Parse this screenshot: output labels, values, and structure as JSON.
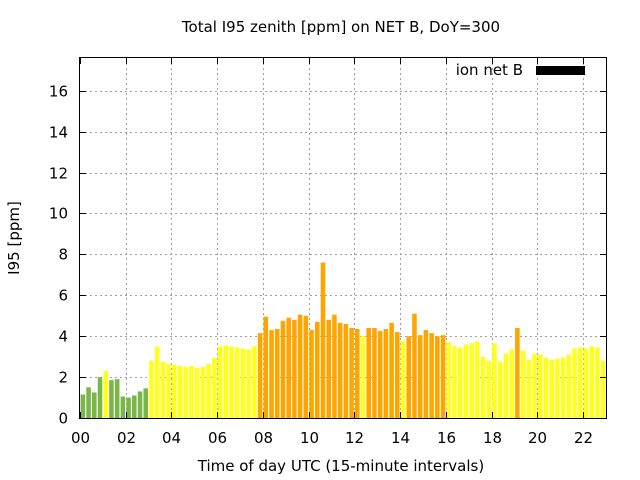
{
  "chart_data": {
    "type": "bar",
    "title": "Total I95 zenith [ppm] on NET B, DoY=300",
    "xlabel": "Time of day UTC (15-minute intervals)",
    "ylabel": "I95 [ppm]",
    "legend": {
      "label": "ion net B",
      "color": "#000000",
      "placement": "top-right"
    },
    "grid": true,
    "xlim": [
      0,
      23
    ],
    "ylim": [
      0,
      17.6
    ],
    "bar_width_hours": 0.2,
    "x_tick_values": [
      0,
      2,
      4,
      6,
      8,
      10,
      12,
      14,
      16,
      18,
      20,
      22
    ],
    "x_tick_labels": [
      "00",
      "02",
      "04",
      "06",
      "08",
      "10",
      "12",
      "14",
      "16",
      "18",
      "20",
      "22"
    ],
    "y_ticks": [
      0,
      2,
      4,
      6,
      8,
      10,
      12,
      14,
      16
    ],
    "colors": {
      "green": "#7ab648",
      "yellow": "#ffff1e",
      "orange": "#ffa500"
    },
    "bars": [
      {
        "x": 0.125,
        "y": 1.15,
        "c": "green"
      },
      {
        "x": 0.375,
        "y": 1.5,
        "c": "green"
      },
      {
        "x": 0.625,
        "y": 1.25,
        "c": "green"
      },
      {
        "x": 0.875,
        "y": 2.0,
        "c": "green"
      },
      {
        "x": 1.125,
        "y": 2.3,
        "c": "yellow"
      },
      {
        "x": 1.375,
        "y": 1.85,
        "c": "green"
      },
      {
        "x": 1.625,
        "y": 1.9,
        "c": "green"
      },
      {
        "x": 1.875,
        "y": 1.05,
        "c": "green"
      },
      {
        "x": 2.125,
        "y": 1.0,
        "c": "green"
      },
      {
        "x": 2.375,
        "y": 1.1,
        "c": "green"
      },
      {
        "x": 2.625,
        "y": 1.3,
        "c": "green"
      },
      {
        "x": 2.875,
        "y": 1.45,
        "c": "green"
      },
      {
        "x": 3.125,
        "y": 2.8,
        "c": "yellow"
      },
      {
        "x": 3.375,
        "y": 3.5,
        "c": "yellow"
      },
      {
        "x": 3.625,
        "y": 2.75,
        "c": "yellow"
      },
      {
        "x": 3.875,
        "y": 2.65,
        "c": "yellow"
      },
      {
        "x": 4.125,
        "y": 2.6,
        "c": "yellow"
      },
      {
        "x": 4.375,
        "y": 2.55,
        "c": "yellow"
      },
      {
        "x": 4.625,
        "y": 2.5,
        "c": "yellow"
      },
      {
        "x": 4.875,
        "y": 2.55,
        "c": "yellow"
      },
      {
        "x": 5.125,
        "y": 2.45,
        "c": "yellow"
      },
      {
        "x": 5.375,
        "y": 2.5,
        "c": "yellow"
      },
      {
        "x": 5.625,
        "y": 2.65,
        "c": "yellow"
      },
      {
        "x": 5.875,
        "y": 2.95,
        "c": "yellow"
      },
      {
        "x": 6.125,
        "y": 3.5,
        "c": "yellow"
      },
      {
        "x": 6.375,
        "y": 3.55,
        "c": "yellow"
      },
      {
        "x": 6.625,
        "y": 3.5,
        "c": "yellow"
      },
      {
        "x": 6.875,
        "y": 3.45,
        "c": "yellow"
      },
      {
        "x": 7.125,
        "y": 3.4,
        "c": "yellow"
      },
      {
        "x": 7.375,
        "y": 3.35,
        "c": "yellow"
      },
      {
        "x": 7.625,
        "y": 3.5,
        "c": "yellow"
      },
      {
        "x": 7.875,
        "y": 4.15,
        "c": "orange"
      },
      {
        "x": 8.125,
        "y": 4.95,
        "c": "orange"
      },
      {
        "x": 8.375,
        "y": 4.3,
        "c": "orange"
      },
      {
        "x": 8.625,
        "y": 4.35,
        "c": "orange"
      },
      {
        "x": 8.875,
        "y": 4.75,
        "c": "orange"
      },
      {
        "x": 9.125,
        "y": 4.9,
        "c": "orange"
      },
      {
        "x": 9.375,
        "y": 4.8,
        "c": "orange"
      },
      {
        "x": 9.625,
        "y": 5.05,
        "c": "orange"
      },
      {
        "x": 9.875,
        "y": 5.0,
        "c": "orange"
      },
      {
        "x": 10.125,
        "y": 4.3,
        "c": "orange"
      },
      {
        "x": 10.375,
        "y": 4.7,
        "c": "orange"
      },
      {
        "x": 10.625,
        "y": 7.6,
        "c": "orange"
      },
      {
        "x": 10.875,
        "y": 4.8,
        "c": "orange"
      },
      {
        "x": 11.125,
        "y": 5.05,
        "c": "orange"
      },
      {
        "x": 11.375,
        "y": 4.65,
        "c": "orange"
      },
      {
        "x": 11.625,
        "y": 4.6,
        "c": "orange"
      },
      {
        "x": 11.875,
        "y": 4.4,
        "c": "orange"
      },
      {
        "x": 12.125,
        "y": 4.35,
        "c": "orange"
      },
      {
        "x": 12.375,
        "y": 4.0,
        "c": "yellow"
      },
      {
        "x": 12.625,
        "y": 4.4,
        "c": "orange"
      },
      {
        "x": 12.875,
        "y": 4.4,
        "c": "orange"
      },
      {
        "x": 13.125,
        "y": 4.25,
        "c": "orange"
      },
      {
        "x": 13.375,
        "y": 4.35,
        "c": "orange"
      },
      {
        "x": 13.625,
        "y": 4.65,
        "c": "orange"
      },
      {
        "x": 13.875,
        "y": 4.2,
        "c": "orange"
      },
      {
        "x": 14.125,
        "y": 3.75,
        "c": "yellow"
      },
      {
        "x": 14.375,
        "y": 4.0,
        "c": "orange"
      },
      {
        "x": 14.625,
        "y": 5.1,
        "c": "orange"
      },
      {
        "x": 14.875,
        "y": 4.05,
        "c": "orange"
      },
      {
        "x": 15.125,
        "y": 4.3,
        "c": "orange"
      },
      {
        "x": 15.375,
        "y": 4.15,
        "c": "orange"
      },
      {
        "x": 15.625,
        "y": 4.0,
        "c": "orange"
      },
      {
        "x": 15.875,
        "y": 4.05,
        "c": "orange"
      },
      {
        "x": 16.125,
        "y": 3.7,
        "c": "yellow"
      },
      {
        "x": 16.375,
        "y": 3.5,
        "c": "yellow"
      },
      {
        "x": 16.625,
        "y": 3.45,
        "c": "yellow"
      },
      {
        "x": 16.875,
        "y": 3.6,
        "c": "yellow"
      },
      {
        "x": 17.125,
        "y": 3.65,
        "c": "yellow"
      },
      {
        "x": 17.375,
        "y": 3.75,
        "c": "yellow"
      },
      {
        "x": 17.625,
        "y": 3.0,
        "c": "yellow"
      },
      {
        "x": 17.875,
        "y": 2.8,
        "c": "yellow"
      },
      {
        "x": 18.125,
        "y": 3.65,
        "c": "yellow"
      },
      {
        "x": 18.375,
        "y": 2.75,
        "c": "yellow"
      },
      {
        "x": 18.625,
        "y": 3.15,
        "c": "yellow"
      },
      {
        "x": 18.875,
        "y": 3.35,
        "c": "yellow"
      },
      {
        "x": 19.125,
        "y": 4.4,
        "c": "orange"
      },
      {
        "x": 19.375,
        "y": 3.3,
        "c": "yellow"
      },
      {
        "x": 19.625,
        "y": 2.85,
        "c": "yellow"
      },
      {
        "x": 19.875,
        "y": 3.15,
        "c": "yellow"
      },
      {
        "x": 20.125,
        "y": 3.1,
        "c": "yellow"
      },
      {
        "x": 20.375,
        "y": 2.95,
        "c": "yellow"
      },
      {
        "x": 20.625,
        "y": 2.85,
        "c": "yellow"
      },
      {
        "x": 20.875,
        "y": 2.9,
        "c": "yellow"
      },
      {
        "x": 21.125,
        "y": 2.95,
        "c": "yellow"
      },
      {
        "x": 21.375,
        "y": 3.1,
        "c": "yellow"
      },
      {
        "x": 21.625,
        "y": 3.4,
        "c": "yellow"
      },
      {
        "x": 21.875,
        "y": 3.45,
        "c": "yellow"
      },
      {
        "x": 22.125,
        "y": 3.4,
        "c": "yellow"
      },
      {
        "x": 22.375,
        "y": 3.5,
        "c": "yellow"
      },
      {
        "x": 22.625,
        "y": 3.45,
        "c": "yellow"
      },
      {
        "x": 22.875,
        "y": 2.8,
        "c": "yellow"
      }
    ]
  }
}
